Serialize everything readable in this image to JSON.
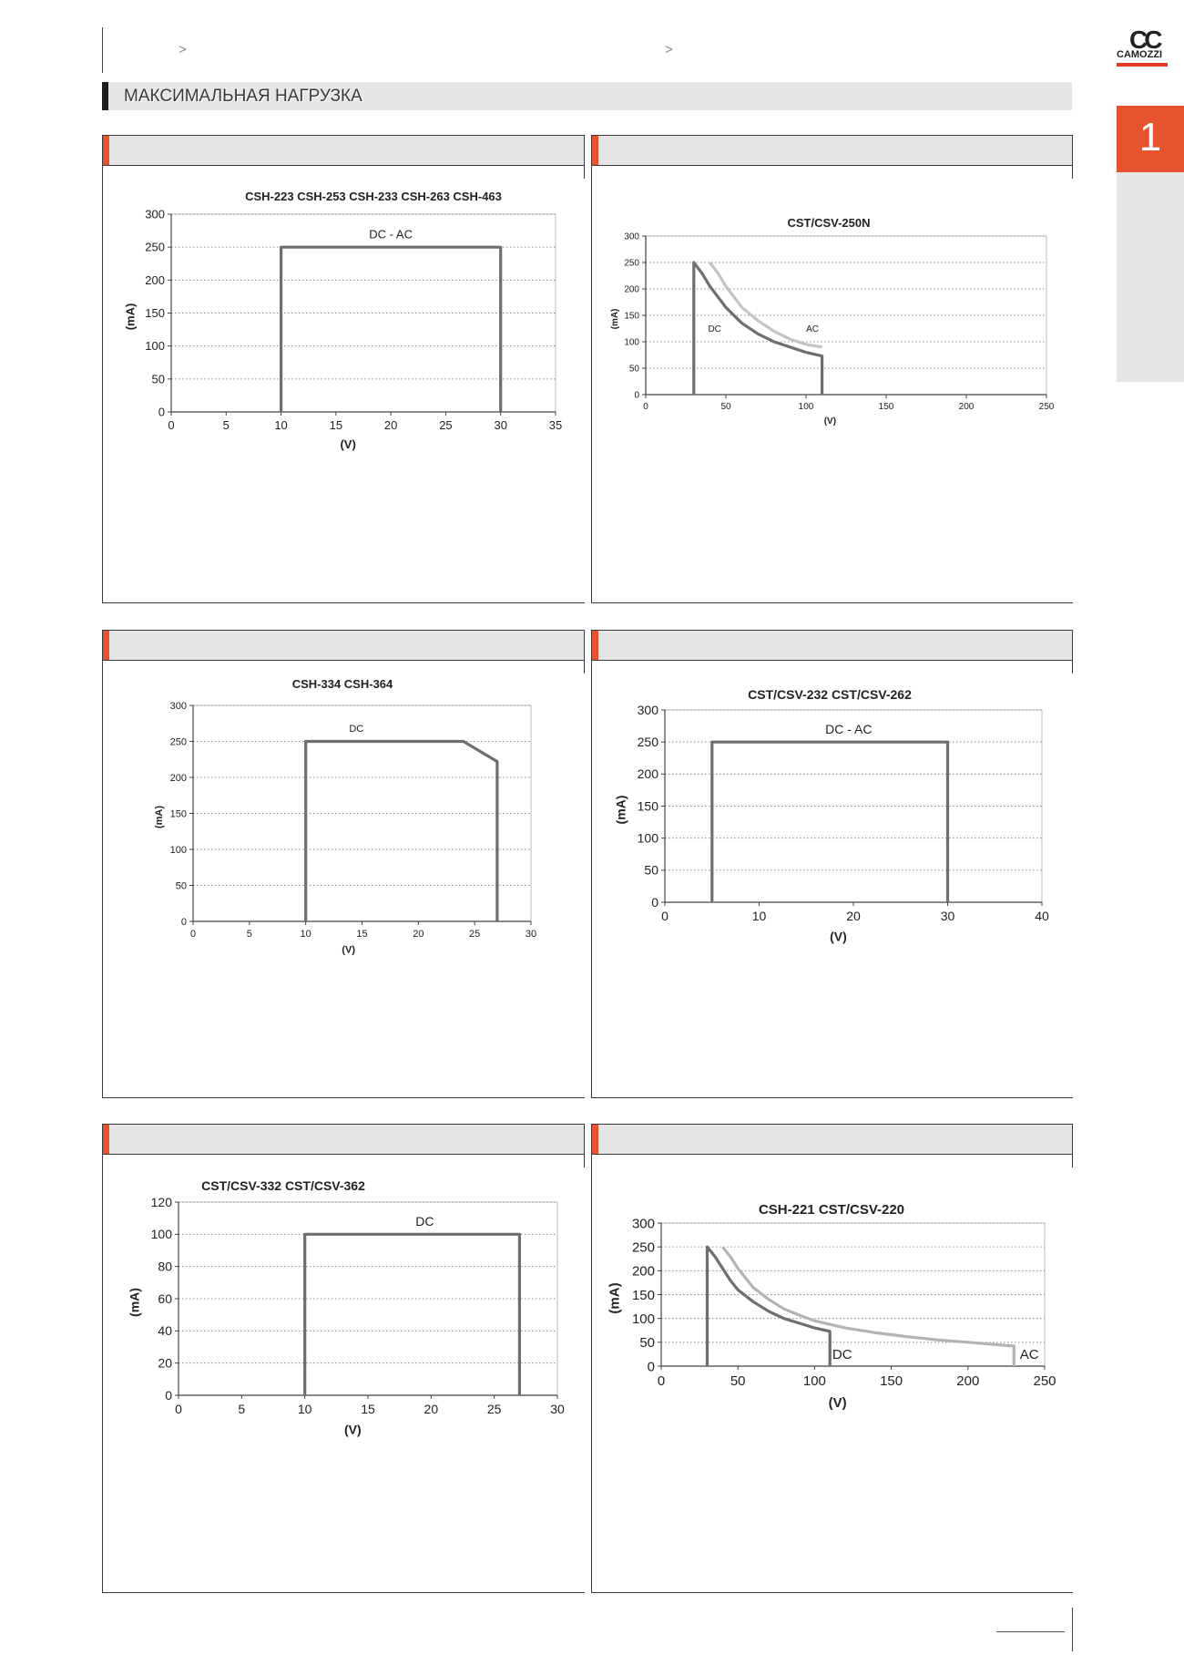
{
  "header": {
    "breadcrumb_arrow_1": ">",
    "breadcrumb_arrow_2": ">",
    "section_title": "МАКСИМАЛЬНАЯ НАГРУЗКА"
  },
  "logo": {
    "mark": "CC",
    "word": "CAMOZZI",
    "brand_color": "#e23a22"
  },
  "side_tab": {
    "number": "1",
    "color": "#e8532f"
  },
  "chart_data": [
    {
      "type": "line",
      "title": "CSH-223 CSH-253 CSH-233 CSH-263 CSH-463",
      "xlabel": "(V)",
      "ylabel": "(mA)",
      "xlim": [
        0,
        35
      ],
      "ylim": [
        0,
        300
      ],
      "xticks": [
        0,
        5,
        10,
        15,
        20,
        25,
        30,
        35
      ],
      "yticks": [
        0,
        50,
        100,
        150,
        200,
        250,
        300
      ],
      "grid": "horizontal dotted",
      "series": [
        {
          "name": "DC - AC",
          "color": "#6e6e6e",
          "x": [
            10,
            10,
            30,
            30
          ],
          "y": [
            0,
            250,
            250,
            0
          ]
        }
      ],
      "annotations": [
        {
          "text": "DC - AC",
          "x": 20,
          "y": 270
        }
      ]
    },
    {
      "type": "line",
      "title": "CST/CSV-250N",
      "xlabel": "(V)",
      "ylabel": "(mA)",
      "xlim": [
        0,
        250
      ],
      "ylim": [
        0,
        300
      ],
      "xticks": [
        0,
        50,
        100,
        150,
        200,
        250
      ],
      "yticks": [
        0,
        50,
        100,
        150,
        200,
        250,
        300
      ],
      "grid": "horizontal dotted",
      "series": [
        {
          "name": "DC",
          "color": "#6e6e6e",
          "x": [
            30,
            30,
            35,
            40,
            45,
            50,
            60,
            70,
            80,
            90,
            100,
            110,
            110
          ],
          "y": [
            0,
            250,
            230,
            205,
            185,
            165,
            135,
            115,
            100,
            90,
            80,
            73,
            0
          ]
        },
        {
          "name": "AC",
          "color": "#c4c4c4",
          "x": [
            40,
            45,
            50,
            55,
            60,
            70,
            80,
            90,
            100,
            110
          ],
          "y": [
            250,
            230,
            205,
            185,
            165,
            140,
            120,
            105,
            95,
            90
          ]
        }
      ],
      "annotations": [
        {
          "text": "DC",
          "x": 43,
          "y": 125
        },
        {
          "text": "AC",
          "x": 104,
          "y": 125
        }
      ]
    },
    {
      "type": "line",
      "title": "CSH-334 CSH-364",
      "xlabel": "(V)",
      "ylabel": "(mA)",
      "xlim": [
        0,
        30
      ],
      "ylim": [
        0,
        300
      ],
      "xticks": [
        0,
        5,
        10,
        15,
        20,
        25,
        30
      ],
      "yticks": [
        0,
        50,
        100,
        150,
        200,
        250,
        300
      ],
      "grid": "horizontal dotted",
      "series": [
        {
          "name": "DC",
          "color": "#6e6e6e",
          "x": [
            10,
            10,
            24,
            27,
            27
          ],
          "y": [
            0,
            250,
            250,
            222,
            0
          ]
        }
      ],
      "annotations": [
        {
          "text": "DC",
          "x": 14.5,
          "y": 268
        }
      ]
    },
    {
      "type": "line",
      "title": "CST/CSV-232 CST/CSV-262",
      "xlabel": "(V)",
      "ylabel": "(mA)",
      "xlim": [
        0,
        40
      ],
      "ylim": [
        0,
        300
      ],
      "xticks": [
        0,
        10,
        20,
        30,
        40
      ],
      "yticks": [
        0,
        50,
        100,
        150,
        200,
        250,
        300
      ],
      "grid": "horizontal dotted",
      "series": [
        {
          "name": "DC - AC",
          "color": "#6e6e6e",
          "x": [
            5,
            5,
            30,
            30
          ],
          "y": [
            0,
            250,
            250,
            0
          ]
        }
      ],
      "annotations": [
        {
          "text": "DC - AC",
          "x": 19.5,
          "y": 270
        }
      ]
    },
    {
      "type": "line",
      "title": "CST/CSV-332 CST/CSV-362",
      "xlabel": "(V)",
      "ylabel": "(mA)",
      "xlim": [
        0,
        30
      ],
      "ylim": [
        0,
        120
      ],
      "xticks": [
        0,
        5,
        10,
        15,
        20,
        25,
        30
      ],
      "yticks": [
        0,
        20,
        40,
        60,
        80,
        100,
        120
      ],
      "grid": "horizontal dotted",
      "series": [
        {
          "name": "DC",
          "color": "#6e6e6e",
          "x": [
            10,
            10,
            27,
            27
          ],
          "y": [
            0,
            100,
            100,
            0
          ]
        }
      ],
      "annotations": [
        {
          "text": "DC",
          "x": 19.5,
          "y": 108
        }
      ]
    },
    {
      "type": "line",
      "title": "CSH-221 CST/CSV-220",
      "xlabel": "(V)",
      "ylabel": "(mA)",
      "xlim": [
        0,
        250
      ],
      "ylim": [
        0,
        300
      ],
      "xticks": [
        0,
        50,
        100,
        150,
        200,
        250
      ],
      "yticks": [
        0,
        50,
        100,
        150,
        200,
        250,
        300
      ],
      "grid": "horizontal dotted",
      "series": [
        {
          "name": "DC",
          "color": "#6e6e6e",
          "x": [
            30,
            30,
            35,
            40,
            45,
            50,
            60,
            70,
            80,
            90,
            100,
            110,
            110
          ],
          "y": [
            0,
            250,
            230,
            205,
            180,
            160,
            135,
            115,
            100,
            90,
            80,
            73,
            0
          ]
        },
        {
          "name": "AC",
          "color": "#b4b4b4",
          "x": [
            40,
            45,
            50,
            55,
            60,
            70,
            80,
            90,
            100,
            120,
            140,
            160,
            180,
            200,
            230,
            230
          ],
          "y": [
            250,
            230,
            205,
            185,
            165,
            140,
            120,
            107,
            95,
            80,
            70,
            62,
            55,
            50,
            42,
            0
          ]
        }
      ],
      "annotations": [
        {
          "text": "DC",
          "x": 118,
          "y": 25
        },
        {
          "text": "AC",
          "x": 240,
          "y": 25
        }
      ]
    }
  ]
}
